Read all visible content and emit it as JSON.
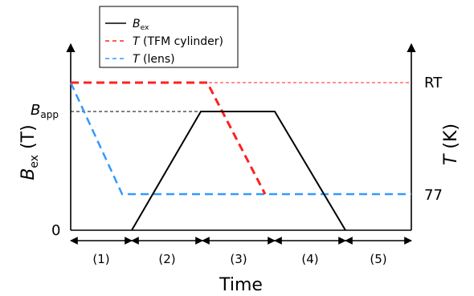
{
  "legend": {
    "items": [
      {
        "sym": "B",
        "sub": "ex",
        "rest": "",
        "style": "solid",
        "color": "#000000"
      },
      {
        "sym": "T",
        "sub": "",
        "rest": " (TFM cylinder)",
        "style": "dashed",
        "color": "#ff2020"
      },
      {
        "sym": "T",
        "sub": "",
        "rest": " (lens)",
        "style": "dashed",
        "color": "#3399ff"
      }
    ]
  },
  "axes": {
    "left": {
      "sym": "B",
      "sub": "ex",
      "unit": " (T)"
    },
    "right": {
      "sym": "T",
      "unit": " (K)"
    },
    "bottom": "Time"
  },
  "annotations": {
    "b_app": {
      "sym": "B",
      "sub": "app"
    },
    "zero": "0",
    "rt": "RT",
    "t77": "77"
  },
  "stages": [
    "(1)",
    "(2)",
    "(3)",
    "(4)",
    "(5)"
  ],
  "colors": {
    "bex": "#000000",
    "tfm": "#ff2020",
    "lens": "#3399ff"
  }
}
